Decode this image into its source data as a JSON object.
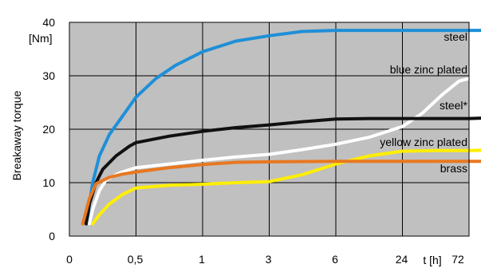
{
  "chart_data": {
    "type": "line",
    "title": "",
    "ylabel": "Breakaway  torque",
    "yunit": "[Nm]",
    "xlabel": "t [h]",
    "ylim": [
      0,
      40
    ],
    "yticks": [
      0,
      10,
      20,
      30,
      40
    ],
    "x_categories": [
      "0",
      "0,5",
      "1",
      "3",
      "6",
      "24",
      "72"
    ],
    "grid": true,
    "background": "#c0c0c0",
    "series": [
      {
        "name": "steel",
        "color": "#1f8fd8",
        "points": [
          [
            0.27,
            2.3
          ],
          [
            0.3,
            6
          ],
          [
            0.35,
            10
          ],
          [
            0.45,
            15
          ],
          [
            0.6,
            19
          ],
          [
            0.8,
            22.5
          ],
          [
            1.0,
            26
          ],
          [
            1.3,
            29.5
          ],
          [
            1.6,
            32
          ],
          [
            2.0,
            34.5
          ],
          [
            2.5,
            36.5
          ],
          [
            3.0,
            37.5
          ],
          [
            3.5,
            38.3
          ],
          [
            4.0,
            38.5
          ],
          [
            5.0,
            38.5
          ],
          [
            6.0,
            38.5
          ],
          [
            6.5,
            38.5
          ]
        ]
      },
      {
        "name": "blue zinc plated",
        "color": "#ffffff",
        "points": [
          [
            0.3,
            2.3
          ],
          [
            0.35,
            5
          ],
          [
            0.45,
            8.5
          ],
          [
            0.55,
            10.5
          ],
          [
            0.75,
            11.8
          ],
          [
            1.0,
            12.8
          ],
          [
            1.5,
            13.5
          ],
          [
            2.0,
            14.2
          ],
          [
            2.5,
            14.8
          ],
          [
            3.0,
            15.3
          ],
          [
            3.5,
            16.2
          ],
          [
            4.0,
            17.2
          ],
          [
            4.5,
            18.5
          ],
          [
            5.0,
            20.5
          ],
          [
            5.3,
            23
          ],
          [
            5.6,
            26.5
          ],
          [
            5.85,
            29
          ],
          [
            6.1,
            29.8
          ],
          [
            6.5,
            30
          ]
        ]
      },
      {
        "name": "steel*",
        "color": "#111111",
        "points": [
          [
            0.25,
            2.3
          ],
          [
            0.3,
            6
          ],
          [
            0.4,
            10
          ],
          [
            0.5,
            12.5
          ],
          [
            0.7,
            15
          ],
          [
            0.9,
            16.8
          ],
          [
            1.0,
            17.5
          ],
          [
            1.5,
            18.7
          ],
          [
            2.0,
            19.6
          ],
          [
            2.5,
            20.3
          ],
          [
            3.0,
            20.8
          ],
          [
            3.5,
            21.4
          ],
          [
            4.0,
            21.9
          ],
          [
            4.5,
            22
          ],
          [
            5.0,
            22
          ],
          [
            6.0,
            22
          ],
          [
            6.5,
            22.2
          ]
        ]
      },
      {
        "name": "yellow zinc plated",
        "color": "#ffee00",
        "points": [
          [
            0.35,
            2.3
          ],
          [
            0.45,
            4
          ],
          [
            0.6,
            6
          ],
          [
            0.8,
            7.8
          ],
          [
            1.0,
            9
          ],
          [
            1.5,
            9.5
          ],
          [
            2.0,
            9.7
          ],
          [
            2.5,
            10
          ],
          [
            3.0,
            10.2
          ],
          [
            3.5,
            11.5
          ],
          [
            4.0,
            13.5
          ],
          [
            4.5,
            15
          ],
          [
            5.0,
            15.9
          ],
          [
            5.5,
            16
          ],
          [
            6.0,
            16
          ],
          [
            6.5,
            16.2
          ]
        ]
      },
      {
        "name": "brass",
        "color": "#e87820",
        "points": [
          [
            0.2,
            2.3
          ],
          [
            0.3,
            7
          ],
          [
            0.4,
            9.8
          ],
          [
            0.6,
            11
          ],
          [
            0.8,
            11.6
          ],
          [
            1.0,
            12
          ],
          [
            1.5,
            12.8
          ],
          [
            2.0,
            13.4
          ],
          [
            2.5,
            13.8
          ],
          [
            3.0,
            13.9
          ],
          [
            4.0,
            14
          ],
          [
            5.0,
            14
          ],
          [
            6.0,
            14
          ],
          [
            6.5,
            14
          ]
        ]
      }
    ]
  }
}
